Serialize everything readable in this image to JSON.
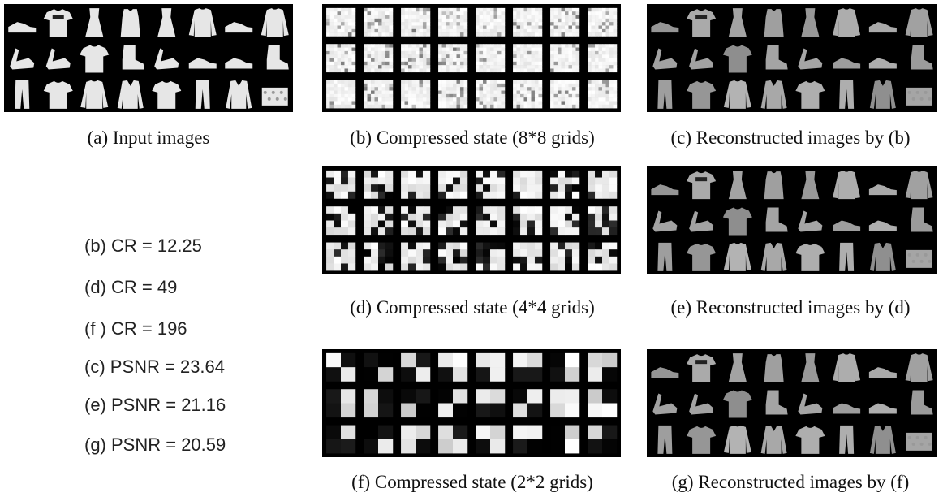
{
  "captions": {
    "a": "(a) Input images",
    "b": "(b) Compressed state (8*8 grids)",
    "c": "(c) Reconstructed images by (b)",
    "d": "(d) Compressed state (4*4 grids)",
    "e": "(e) Reconstructed images by (d)",
    "f": "(f) Compressed state (2*2 grids)",
    "g": "(g) Reconstructed images by (f)"
  },
  "metrics": [
    "(b) CR = 12.25",
    "(d) CR = 49",
    "(f ) CR = 196",
    "(c) PSNR = 23.64",
    "(e) PSNR = 21.16",
    "(g) PSNR = 20.59"
  ],
  "grid": {
    "rows": 3,
    "cols": 8
  },
  "items": [
    [
      "sneaker",
      "tshirt",
      "dress",
      "top",
      "dress",
      "pullover",
      "sneaker",
      "pullover"
    ],
    [
      "sandal",
      "sandal",
      "tshirt",
      "ankle-boot",
      "sandal",
      "sneaker",
      "sneaker",
      "ankle-boot"
    ],
    [
      "trouser",
      "tshirt",
      "pullover",
      "coat",
      "tshirt",
      "trouser",
      "coat",
      "bag"
    ]
  ],
  "colors": {
    "panel_bg": "#000000",
    "item_light": "#e6e6e6",
    "item_dim": "#bdbdbd"
  }
}
